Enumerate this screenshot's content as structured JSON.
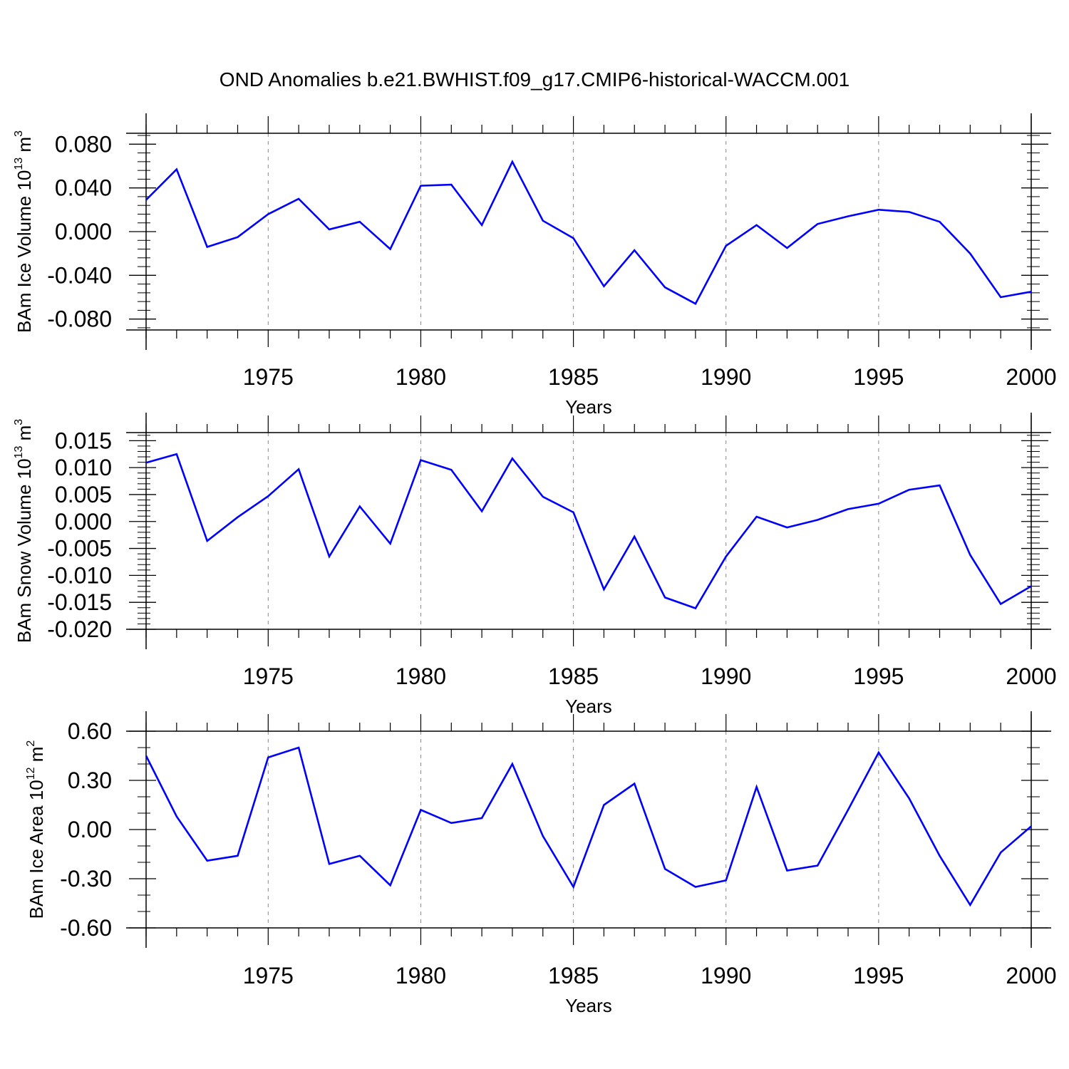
{
  "title": "OND Anomalies b.e21.BWHIST.f09_g17.CMIP6-historical-WACCM.001",
  "colors": {
    "series": "#0000ff",
    "axis": "#000000",
    "grid": "#888888"
  },
  "chart_data": [
    {
      "type": "line",
      "ylabel": {
        "prefix": "BAm Ice Volume 10",
        "exponent": "13",
        "unit": " m",
        "unit_exponent": "3"
      },
      "xlabel": "Years",
      "xlim": [
        1971,
        2000
      ],
      "ylim": [
        -0.09,
        0.09
      ],
      "yticks": [
        -0.08,
        -0.04,
        0.0,
        0.04,
        0.08
      ],
      "ytick_labels": [
        "-0.080",
        "-0.040",
        "0.000",
        "0.040",
        "0.080"
      ],
      "yminor_step": 0.008,
      "xticks": [
        1975,
        1980,
        1985,
        1990,
        1995,
        2000
      ],
      "xtick_labels": [
        "1975",
        "1980",
        "1985",
        "1990",
        "1995",
        "2000"
      ],
      "grid": "vertical-dashed",
      "x": [
        1971,
        1972,
        1973,
        1974,
        1975,
        1976,
        1977,
        1978,
        1979,
        1980,
        1981,
        1982,
        1983,
        1984,
        1985,
        1986,
        1987,
        1988,
        1989,
        1990,
        1991,
        1992,
        1993,
        1994,
        1995,
        1996,
        1997,
        1998,
        1999,
        2000
      ],
      "values": [
        0.029,
        0.057,
        -0.014,
        -0.005,
        0.016,
        0.03,
        0.002,
        0.009,
        -0.016,
        0.042,
        0.043,
        0.006,
        0.064,
        0.01,
        -0.006,
        -0.05,
        -0.017,
        -0.051,
        -0.066,
        -0.013,
        0.006,
        -0.015,
        0.007,
        0.014,
        0.02,
        0.018,
        0.009,
        -0.02,
        -0.06,
        -0.055
      ]
    },
    {
      "type": "line",
      "ylabel": {
        "prefix": "BAm Snow Volume 10",
        "exponent": "13",
        "unit": " m",
        "unit_exponent": "3"
      },
      "xlabel": "Years",
      "xlim": [
        1971,
        2000
      ],
      "ylim": [
        -0.02,
        0.0165
      ],
      "yticks": [
        -0.02,
        -0.015,
        -0.01,
        -0.005,
        0.0,
        0.005,
        0.01,
        0.015
      ],
      "ytick_labels": [
        "-0.020",
        "-0.015",
        "-0.010",
        "-0.005",
        "0.000",
        "0.005",
        "0.010",
        "0.015"
      ],
      "yminor_step": 0.001,
      "xticks": [
        1975,
        1980,
        1985,
        1990,
        1995,
        2000
      ],
      "xtick_labels": [
        "1975",
        "1980",
        "1985",
        "1990",
        "1995",
        "2000"
      ],
      "grid": "vertical-dashed",
      "x": [
        1971,
        1972,
        1973,
        1974,
        1975,
        1976,
        1977,
        1978,
        1979,
        1980,
        1981,
        1982,
        1983,
        1984,
        1985,
        1986,
        1987,
        1988,
        1989,
        1990,
        1991,
        1992,
        1993,
        1994,
        1995,
        1996,
        1997,
        1998,
        1999,
        2000
      ],
      "values": [
        0.0109,
        0.0125,
        -0.0036,
        0.0008,
        0.0047,
        0.0097,
        -0.0065,
        0.0028,
        -0.0041,
        0.0114,
        0.0096,
        0.0019,
        0.0117,
        0.0046,
        0.0017,
        -0.0126,
        -0.0028,
        -0.0141,
        -0.0161,
        -0.0065,
        0.0009,
        -0.0011,
        0.0003,
        0.0023,
        0.0033,
        0.0059,
        0.0067,
        -0.0062,
        -0.0153,
        -0.012
      ]
    },
    {
      "type": "line",
      "ylabel": {
        "prefix": "BAm Ice Area 10",
        "exponent": "12",
        "unit": " m",
        "unit_exponent": "2"
      },
      "xlabel": "Years",
      "xlim": [
        1971,
        2000
      ],
      "ylim": [
        -0.6,
        0.6
      ],
      "yticks": [
        -0.6,
        -0.3,
        0.0,
        0.3,
        0.6
      ],
      "ytick_labels": [
        "-0.60",
        "-0.30",
        "0.00",
        "0.30",
        "0.60"
      ],
      "yminor_step": 0.1,
      "xticks": [
        1975,
        1980,
        1985,
        1990,
        1995,
        2000
      ],
      "xtick_labels": [
        "1975",
        "1980",
        "1985",
        "1990",
        "1995",
        "2000"
      ],
      "grid": "vertical-dashed",
      "x": [
        1971,
        1972,
        1973,
        1974,
        1975,
        1976,
        1977,
        1978,
        1979,
        1980,
        1981,
        1982,
        1983,
        1984,
        1985,
        1986,
        1987,
        1988,
        1989,
        1990,
        1991,
        1992,
        1993,
        1994,
        1995,
        1996,
        1997,
        1998,
        1999,
        2000
      ],
      "values": [
        0.45,
        0.08,
        -0.19,
        -0.16,
        0.44,
        0.5,
        -0.21,
        -0.16,
        -0.34,
        0.12,
        0.04,
        0.07,
        0.4,
        -0.04,
        -0.35,
        0.15,
        0.28,
        -0.24,
        -0.35,
        -0.31,
        0.26,
        -0.25,
        -0.22,
        0.12,
        0.47,
        0.19,
        -0.16,
        -0.46,
        -0.14,
        0.02
      ]
    }
  ]
}
